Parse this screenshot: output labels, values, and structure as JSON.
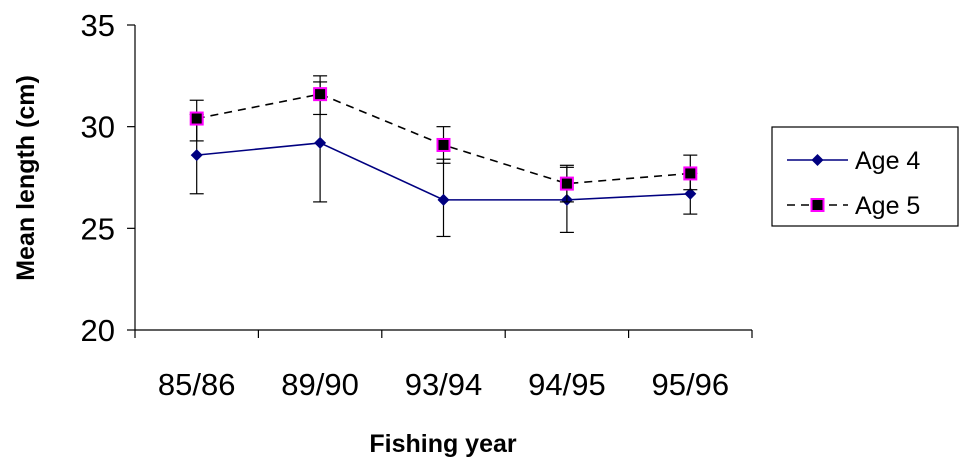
{
  "chart_data": {
    "type": "line",
    "xlabel": "Fishing year",
    "ylabel": "Mean length (cm)",
    "categories": [
      "85/86",
      "89/90",
      "93/94",
      "94/95",
      "95/96"
    ],
    "ylim": [
      20,
      35
    ],
    "yticks": [
      20,
      25,
      30,
      35
    ],
    "grid": false,
    "legend_position": "right",
    "series": [
      {
        "name": "Age 4",
        "values": [
          28.6,
          29.2,
          26.4,
          26.4,
          26.7
        ],
        "err_low": [
          26.7,
          26.3,
          24.6,
          24.8,
          25.7
        ],
        "err_high": [
          30.6,
          32.2,
          28.4,
          28.1,
          27.7
        ],
        "line_color": "#000080",
        "line_style": "solid",
        "marker": "diamond",
        "marker_color": "#000080"
      },
      {
        "name": "Age 5",
        "values": [
          30.4,
          31.6,
          29.1,
          27.2,
          27.7
        ],
        "err_low": [
          29.3,
          30.6,
          28.2,
          26.3,
          26.9
        ],
        "err_high": [
          31.3,
          32.5,
          30.0,
          28.0,
          28.6
        ],
        "line_color": "#000000",
        "line_style": "dashed",
        "marker": "square",
        "marker_color": "#000000",
        "marker_edge_color": "#ff00ff"
      }
    ]
  }
}
